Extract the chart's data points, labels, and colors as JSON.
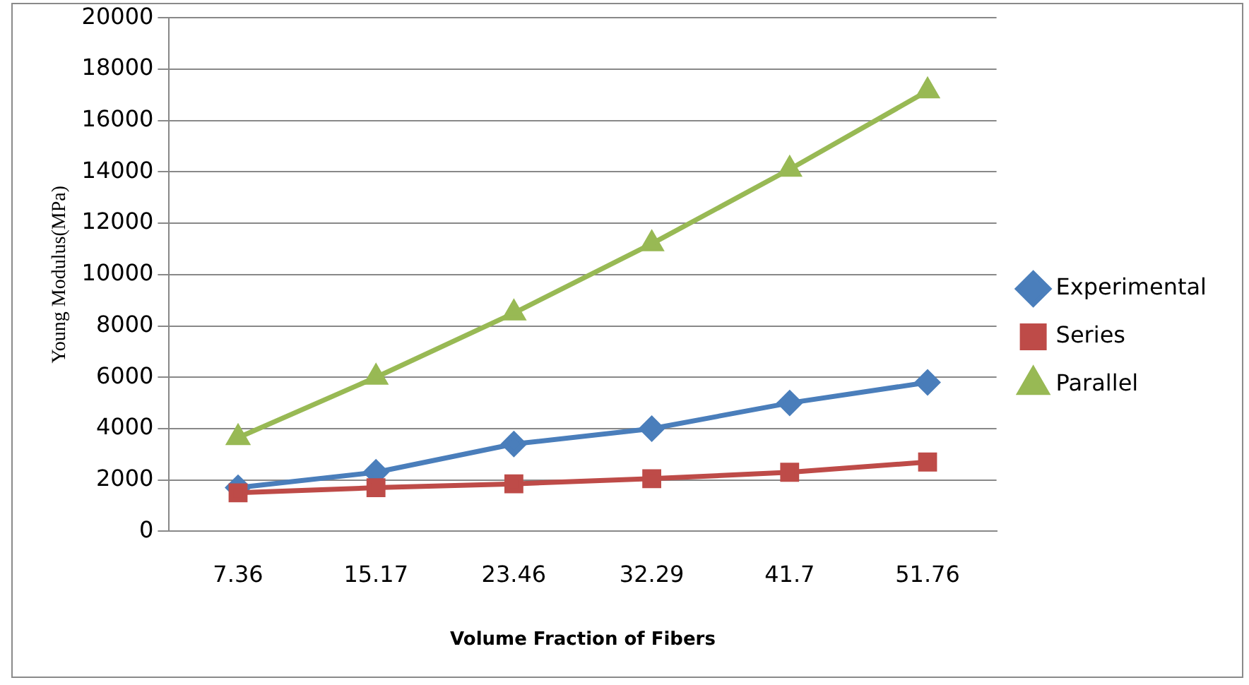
{
  "chart_data": {
    "type": "line",
    "xlabel": "Volume Fraction of Fibers",
    "ylabel": "Young Modulus(MPa)",
    "categories": [
      "7.36",
      "15.17",
      "23.46",
      "32.29",
      "41.7",
      "51.76"
    ],
    "series": [
      {
        "name": "Experimental",
        "color": "#4a7ebb",
        "marker": "diamond",
        "values": [
          1700,
          2300,
          3400,
          4000,
          5000,
          5800
        ]
      },
      {
        "name": "Series",
        "color": "#be4b48",
        "marker": "square",
        "values": [
          1500,
          1700,
          1850,
          2050,
          2300,
          2700
        ]
      },
      {
        "name": "Parallel",
        "color": "#98b954",
        "marker": "triangle",
        "values": [
          3650,
          6000,
          8500,
          11200,
          14100,
          17150
        ]
      }
    ],
    "ylim": [
      0,
      20000
    ],
    "yticks": [
      0,
      2000,
      4000,
      6000,
      8000,
      10000,
      12000,
      14000,
      16000,
      18000,
      20000
    ],
    "grid": "y",
    "legend": "right"
  }
}
